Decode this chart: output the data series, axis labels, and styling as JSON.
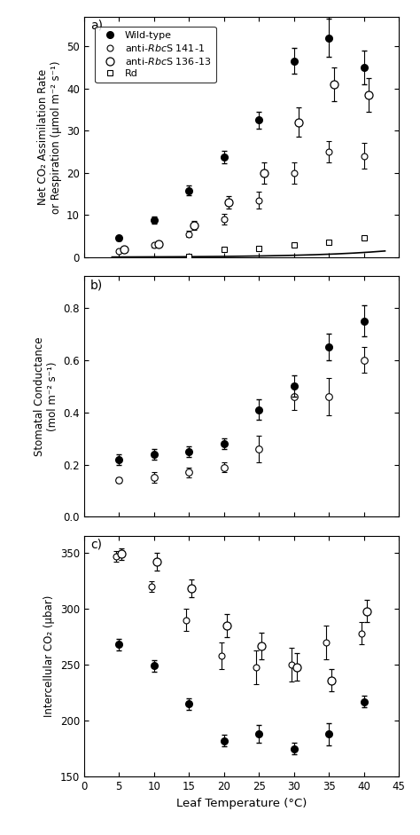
{
  "temps": [
    5,
    10,
    15,
    20,
    25,
    30,
    35,
    40
  ],
  "panel_a": {
    "wt_y": [
      4.5,
      8.8,
      15.8,
      23.8,
      32.5,
      46.5,
      52.0,
      45.0
    ],
    "wt_err": [
      0.5,
      0.8,
      1.2,
      1.5,
      2.0,
      3.0,
      4.5,
      4.0
    ],
    "s141_y": [
      1.5,
      2.8,
      5.5,
      9.0,
      13.5,
      20.0,
      25.0,
      24.0
    ],
    "s141_err": [
      0.3,
      0.5,
      0.8,
      1.2,
      2.0,
      2.5,
      2.5,
      3.0
    ],
    "s136_y": [
      1.8,
      3.2,
      7.5,
      13.0,
      20.0,
      32.0,
      41.0,
      38.5
    ],
    "s136_err": [
      0.4,
      0.6,
      1.0,
      1.5,
      2.5,
      3.5,
      4.0,
      4.0
    ],
    "rd_sq_x": [
      15,
      20,
      25,
      30,
      35,
      40
    ],
    "rd_sq_y": [
      0.1,
      1.8,
      2.0,
      3.0,
      3.5,
      4.5
    ],
    "ylim": [
      0,
      57
    ],
    "yticks": [
      0,
      10,
      20,
      30,
      40,
      50
    ],
    "ylabel": "Net CO₂ Assimilation Rate\nor Respiration (μmol m⁻² s⁻¹)"
  },
  "panel_b": {
    "wt_y": [
      0.22,
      0.24,
      0.25,
      0.28,
      0.41,
      0.5,
      0.65,
      0.75
    ],
    "wt_err": [
      0.02,
      0.02,
      0.02,
      0.02,
      0.04,
      0.04,
      0.05,
      0.06
    ],
    "anti_y": [
      0.14,
      0.15,
      0.17,
      0.19,
      0.26,
      0.46,
      0.46,
      0.6
    ],
    "anti_err": [
      0.01,
      0.02,
      0.02,
      0.02,
      0.05,
      0.05,
      0.07,
      0.05
    ],
    "ylim": [
      0.0,
      0.92
    ],
    "yticks": [
      0.0,
      0.2,
      0.4,
      0.6,
      0.8
    ],
    "ylabel": "Stomatal Conductance\n(mol m⁻² s⁻¹)"
  },
  "panel_c": {
    "wt_y": [
      268,
      249,
      215,
      182,
      188,
      175,
      188,
      217
    ],
    "wt_err": [
      5,
      5,
      5,
      5,
      8,
      5,
      10,
      5
    ],
    "anti_y1": [
      347,
      320,
      290,
      258,
      248,
      250,
      270,
      278
    ],
    "anti_err1": [
      5,
      5,
      10,
      12,
      15,
      15,
      15,
      10
    ],
    "anti_y2": [
      349,
      342,
      318,
      285,
      267,
      248,
      236,
      298
    ],
    "anti_err2": [
      5,
      8,
      8,
      10,
      12,
      12,
      10,
      10
    ],
    "ylim": [
      150,
      365
    ],
    "yticks": [
      150,
      200,
      250,
      300,
      350
    ],
    "ylabel": "Intercellular CO₂ (μbar)"
  },
  "xlabel": "Leaf Temperature (°C)",
  "xlim": [
    0,
    45
  ],
  "xticks": [
    0,
    5,
    10,
    15,
    20,
    25,
    30,
    35,
    40,
    45
  ]
}
